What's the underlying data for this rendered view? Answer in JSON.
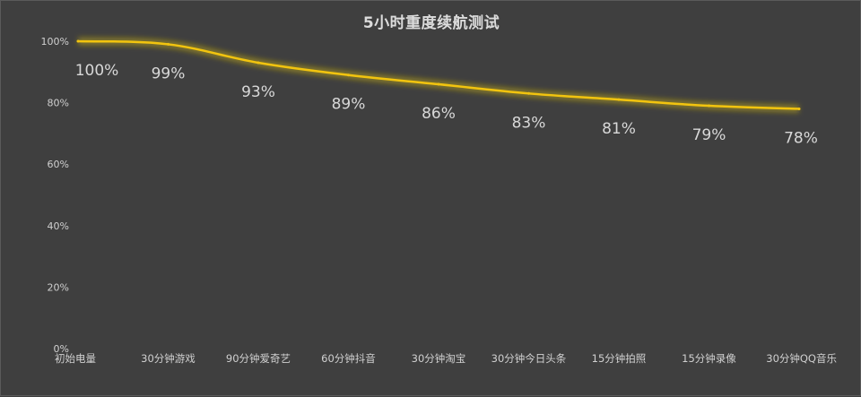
{
  "chart_data": {
    "type": "line",
    "title": "5小时重度续航测试",
    "xlabel": "",
    "ylabel": "",
    "categories": [
      "初始电量",
      "30分钟游戏",
      "90分钟爱奇艺",
      "60分钟抖音",
      "30分钟淘宝",
      "30分钟今日头条",
      "15分钟拍照",
      "15分钟录像",
      "30分钟QQ音乐"
    ],
    "series": [
      {
        "values": [
          100,
          99,
          93,
          89,
          86,
          83,
          81,
          79,
          78
        ],
        "data_labels": [
          "100%",
          "99%",
          "93%",
          "89%",
          "86%",
          "83%",
          "81%",
          "79%",
          "78%"
        ]
      }
    ],
    "y_ticks": [
      "0%",
      "20%",
      "40%",
      "60%",
      "80%",
      "100%"
    ],
    "y_tick_values": [
      0,
      20,
      40,
      60,
      80,
      100
    ],
    "ylim": [
      0,
      100
    ],
    "grid": false,
    "legend": "none",
    "colors": {
      "background": "#3f3f3f",
      "line": "#f2c40f",
      "glow": "#b8a21a",
      "text": "#d8d8d8"
    }
  }
}
